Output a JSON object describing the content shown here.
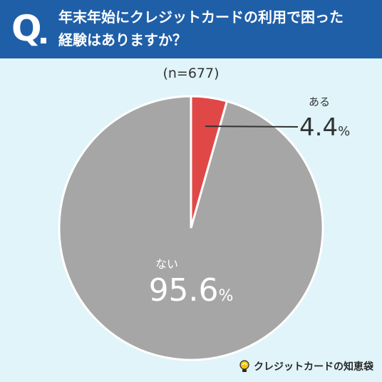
{
  "header": {
    "q_mark": "Q",
    "title_line1": "年末年始にクレジットカードの利用で困った",
    "title_line2": "経験はありますか？"
  },
  "sample_size": "(n=677)",
  "chart_data": {
    "type": "pie",
    "title": "年末年始にクレジットカードの利用で困った経験はありますか？",
    "categories": [
      "ある",
      "ない"
    ],
    "values": [
      4.4,
      95.6
    ],
    "unit": "%",
    "colors": [
      "#e04848",
      "#a6a6a6"
    ],
    "value_labels": [
      "4.4",
      "95.6"
    ],
    "sample": "(n=677)"
  },
  "brand": {
    "text": "クレジットカードの知恵袋",
    "icon": "lightbulb-icon"
  }
}
